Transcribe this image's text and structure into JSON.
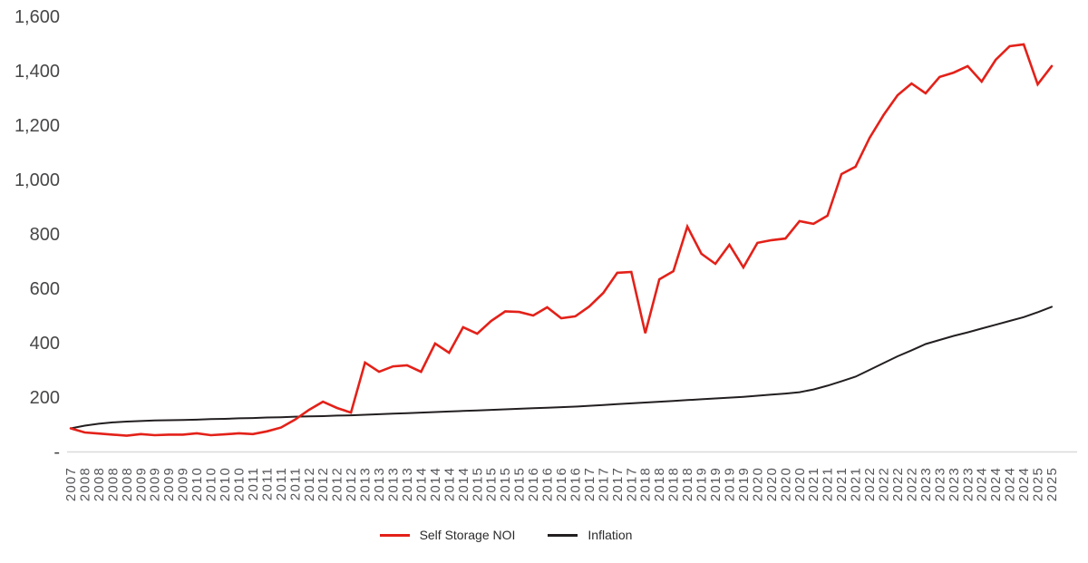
{
  "chart_data": {
    "type": "line",
    "title": "",
    "xlabel": "",
    "ylabel": "",
    "grid": "none",
    "x_tick_labels": [
      "2007",
      "2008",
      "2008",
      "2008",
      "2008",
      "2009",
      "2009",
      "2009",
      "2009",
      "2010",
      "2010",
      "2010",
      "2010",
      "2011",
      "2011",
      "2011",
      "2011",
      "2012",
      "2012",
      "2012",
      "2012",
      "2013",
      "2013",
      "2013",
      "2013",
      "2014",
      "2014",
      "2014",
      "2014",
      "2015",
      "2015",
      "2015",
      "2015",
      "2016",
      "2016",
      "2016",
      "2016",
      "2017",
      "2017",
      "2017",
      "2017",
      "2018",
      "2018",
      "2018",
      "2018",
      "2019",
      "2019",
      "2019",
      "2019",
      "2020",
      "2020",
      "2020",
      "2020",
      "2021",
      "2021",
      "2021",
      "2021",
      "2022",
      "2022",
      "2022",
      "2022",
      "2023",
      "2023",
      "2023",
      "2023",
      "2024",
      "2024",
      "2024",
      "2024",
      "2025",
      "2025"
    ],
    "series": [
      {
        "name": "Self Storage NOI",
        "color": "#e32119",
        "values": [
          85,
          70,
          66,
          62,
          58,
          64,
          60,
          62,
          62,
          67,
          60,
          63,
          67,
          64,
          74,
          88,
          117,
          153,
          183,
          160,
          143,
          327,
          293,
          313,
          317,
          293,
          397,
          363,
          457,
          433,
          480,
          515,
          513,
          500,
          530,
          490,
          497,
          533,
          583,
          657,
          660,
          435,
          633,
          663,
          827,
          727,
          690,
          760,
          677,
          767,
          777,
          783,
          847,
          837,
          867,
          1020,
          1047,
          1153,
          1237,
          1310,
          1353,
          1317,
          1377,
          1393,
          1417,
          1360,
          1440,
          1490,
          1497,
          1350,
          1417
        ]
      },
      {
        "name": "Inflation",
        "color": "#231f20",
        "values": [
          85,
          95,
          102,
          107,
          110,
          112,
          114,
          115,
          116,
          117,
          119,
          120,
          122,
          123,
          125,
          126,
          128,
          129,
          130,
          132,
          133,
          135,
          137,
          139,
          141,
          143,
          145,
          147,
          149,
          151,
          153,
          155,
          157,
          159,
          161,
          163,
          165,
          168,
          171,
          174,
          177,
          180,
          183,
          186,
          189,
          192,
          195,
          198,
          201,
          205,
          209,
          213,
          218,
          228,
          242,
          258,
          275,
          300,
          325,
          350,
          372,
          395,
          410,
          425,
          438,
          452,
          466,
          480,
          494,
          512,
          532
        ]
      }
    ],
    "y_axis": {
      "min": 0,
      "max": 1600,
      "step": 200,
      "tick_labels": [
        "-",
        "200",
        "400",
        "600",
        "800",
        "1,000",
        "1,200",
        "1,400",
        "1,600"
      ]
    },
    "legend_position": "bottom"
  },
  "colors": {
    "background": "#ffffff",
    "baseline": "#d9d9d9",
    "y_tick_text": "#474749",
    "x_tick_text": "#54555a"
  }
}
